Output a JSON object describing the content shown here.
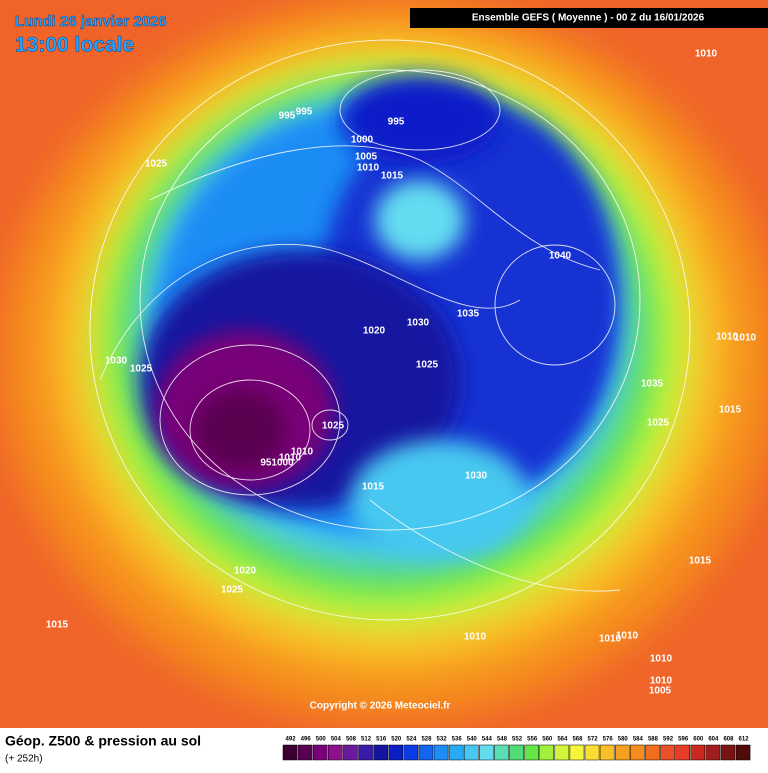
{
  "header": {
    "date": "Lundi 26 janvier 2026",
    "time": "13:00 locale",
    "run": "Ensemble GEFS  ( Moyenne )  -  00 Z du 16/01/2026"
  },
  "map": {
    "isobar_labels": [
      "1010",
      "995",
      "995",
      "995",
      "1000",
      "1005",
      "1010",
      "1015",
      "1025",
      "1040",
      "1035",
      "1030",
      "1020",
      "1025",
      "1030",
      "1025",
      "1010",
      "1010",
      "1035",
      "1015",
      "1025",
      "1025",
      "1010",
      "1010",
      "951000",
      "1015",
      "1030",
      "1015",
      "1020",
      "1025",
      "1015",
      "1010",
      "1010",
      "1010",
      "1010",
      "1010",
      "1005"
    ],
    "copyright": "Copyright © 2026 Meteociel.fr"
  },
  "footer": {
    "title": "Géop. Z500 & pression au sol",
    "lead": "(+ 252h)"
  },
  "scale": {
    "labels": [
      "492",
      "496",
      "500",
      "504",
      "508",
      "512",
      "516",
      "520",
      "524",
      "528",
      "532",
      "536",
      "540",
      "544",
      "548",
      "552",
      "556",
      "560",
      "564",
      "568",
      "572",
      "576",
      "580",
      "584",
      "588",
      "592",
      "596",
      "600",
      "604",
      "608",
      "612"
    ],
    "colors": [
      "#3c0030",
      "#5a0050",
      "#780078",
      "#90108c",
      "#6a1a9a",
      "#3a1aa8",
      "#1414a0",
      "#0a1ec8",
      "#0a3ce6",
      "#1464f0",
      "#1e8cf5",
      "#28aaf5",
      "#46c8f0",
      "#64dcf0",
      "#5adcb4",
      "#50dc78",
      "#64e646",
      "#a0f03c",
      "#d2f53c",
      "#f5f53c",
      "#fadc32",
      "#fabe28",
      "#f5a01e",
      "#f58c1e",
      "#f06e1e",
      "#eb5028",
      "#e63c28",
      "#c8281e",
      "#a01e1e",
      "#781414",
      "#500a0a"
    ]
  }
}
